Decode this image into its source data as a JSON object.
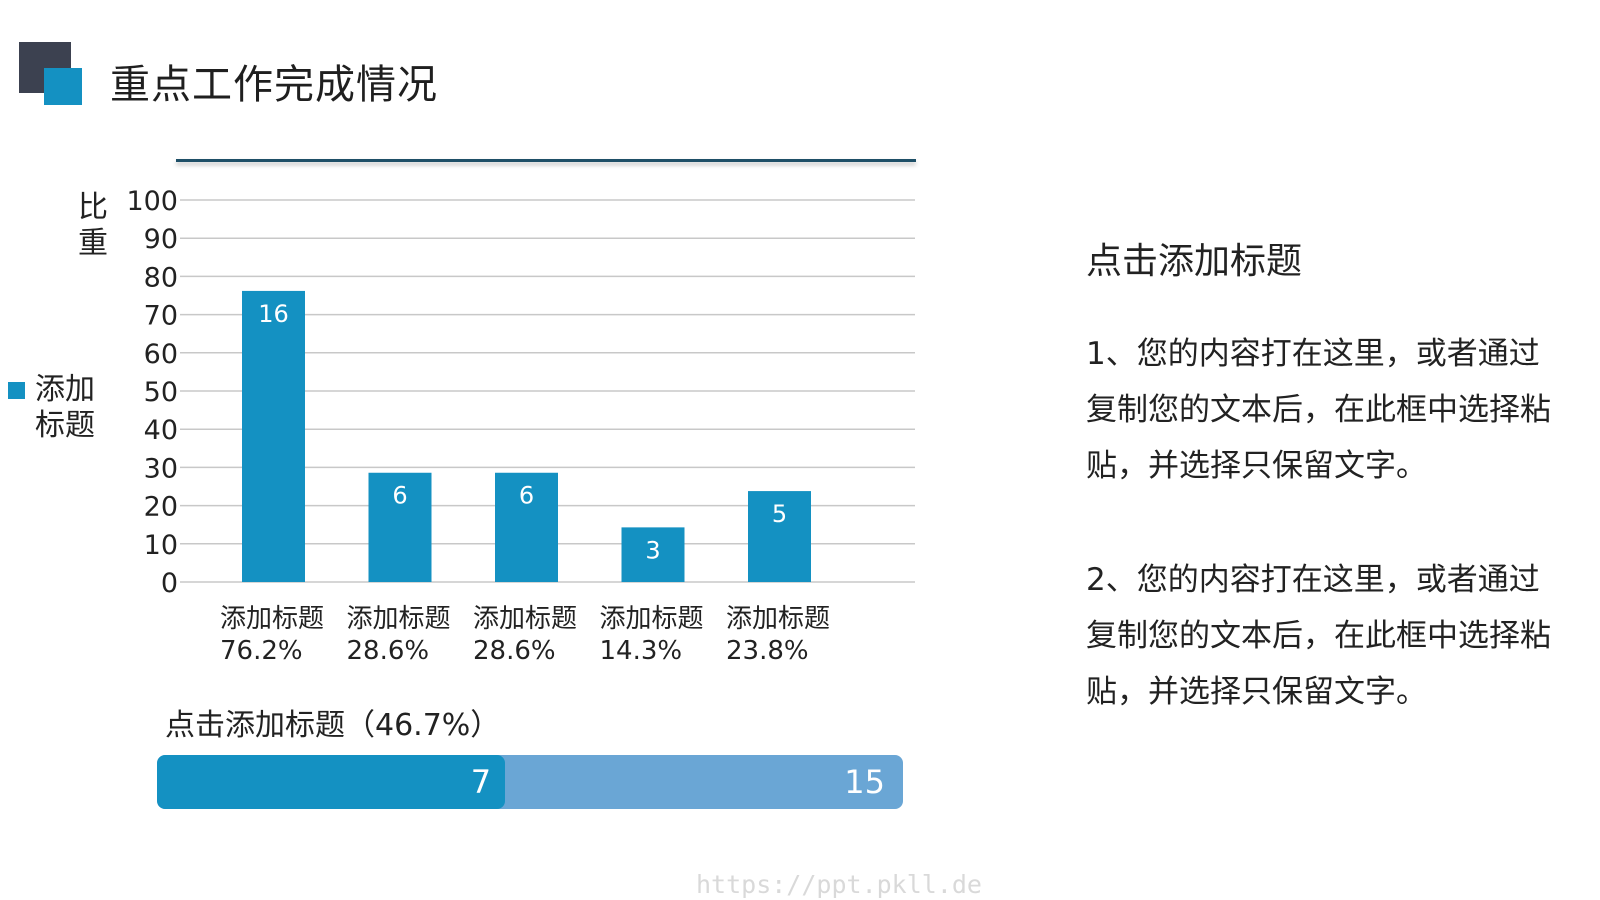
{
  "page": {
    "title": "重点工作完成情况",
    "watermark": "https://ppt.pkll.de"
  },
  "chart_data": {
    "type": "bar",
    "ylabel": "比重",
    "ylim": [
      0,
      100
    ],
    "yticks": [
      0,
      10,
      20,
      30,
      40,
      50,
      60,
      70,
      80,
      90,
      100
    ],
    "grid": true,
    "legend": {
      "position": "left",
      "label": "添加标题"
    },
    "categories": [
      "添加标题",
      "添加标题",
      "添加标题",
      "添加标题",
      "添加标题"
    ],
    "category_percents": [
      "76.2%",
      "28.6%",
      "28.6%",
      "14.3%",
      "23.8%"
    ],
    "series": [
      {
        "name": "添加标题",
        "color": "#1491c2",
        "values": [
          76.2,
          28.6,
          28.6,
          14.3,
          23.8
        ],
        "data_labels": [
          "16",
          "6",
          "6",
          "3",
          "5"
        ]
      }
    ]
  },
  "progress": {
    "title": "点击添加标题（46.7%）",
    "value": 7,
    "total": 15,
    "fraction": 0.467,
    "value_label": "7",
    "total_label": "15",
    "fill_color": "#1491c2",
    "track_color": "#6aa6d5"
  },
  "side": {
    "title": "点击添加标题",
    "para1": "1、您的内容打在这里，或者通过复制您的文本后，在此框中选择粘贴，并选择只保留文字。",
    "para2": "2、您的内容打在这里，或者通过复制您的文本后，在此框中选择粘贴，并选择只保留文字。"
  }
}
